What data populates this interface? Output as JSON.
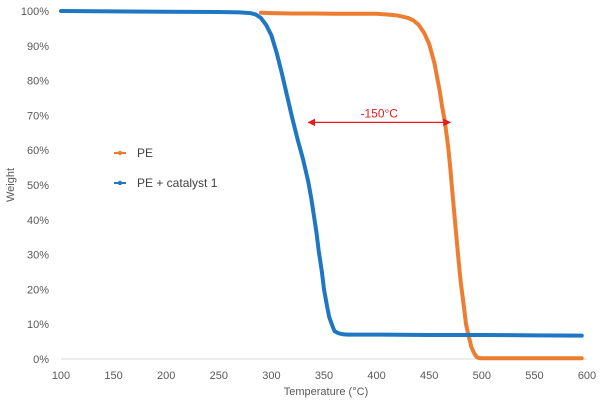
{
  "chart_data": {
    "type": "line",
    "title": "",
    "xlabel": "Temperature (°C)",
    "ylabel": "Weight",
    "xlim": [
      100,
      600
    ],
    "ylim": [
      0,
      100
    ],
    "x_ticks": [
      100,
      150,
      200,
      250,
      300,
      350,
      400,
      450,
      500,
      550,
      600
    ],
    "y_ticks": [
      "0%",
      "10%",
      "20%",
      "30%",
      "40%",
      "50%",
      "60%",
      "70%",
      "80%",
      "90%",
      "100%"
    ],
    "grid": false,
    "legend_position": "left-middle",
    "series": [
      {
        "name": "PE",
        "color": "#ED7D31",
        "x": [
          290,
          300,
          320,
          340,
          360,
          380,
          400,
          410,
          420,
          430,
          435,
          440,
          445,
          450,
          455,
          460,
          462,
          465,
          468,
          470,
          472,
          475,
          478,
          480,
          483,
          485,
          488,
          490,
          493,
          495,
          497,
          500,
          510,
          550,
          595
        ],
        "y": [
          99.5,
          99.4,
          99.3,
          99.3,
          99.2,
          99.2,
          99.2,
          99.0,
          98.7,
          98.0,
          97.3,
          96.0,
          93.8,
          90.5,
          85.0,
          77.0,
          73.0,
          68.0,
          61.0,
          55.0,
          48.0,
          38.0,
          28.0,
          22.0,
          15.0,
          10.0,
          6.0,
          3.5,
          1.5,
          0.6,
          0.3,
          0.2,
          0.2,
          0.2,
          0.2
        ]
      },
      {
        "name": "PE + catalyst 1",
        "color": "#1F77C4",
        "x": [
          100,
          150,
          200,
          250,
          270,
          280,
          285,
          290,
          295,
          300,
          305,
          310,
          315,
          320,
          325,
          330,
          335,
          338,
          340,
          343,
          345,
          348,
          350,
          353,
          355,
          358,
          360,
          363,
          365,
          368,
          372,
          380,
          400,
          450,
          500,
          550,
          595
        ],
        "y": [
          100,
          99.9,
          99.8,
          99.7,
          99.6,
          99.4,
          99.0,
          98.0,
          96.0,
          93.0,
          88.0,
          82.0,
          75.5,
          69.0,
          63.0,
          57.5,
          51.0,
          46.0,
          42.0,
          36.0,
          31.0,
          25.0,
          20.0,
          15.0,
          12.0,
          9.5,
          8.0,
          7.5,
          7.3,
          7.1,
          7.0,
          7.0,
          7.0,
          6.9,
          6.9,
          6.8,
          6.7
        ]
      }
    ],
    "annotation": {
      "text": "-150°C",
      "color": "#E81C1C",
      "x_start": 335,
      "x_end": 470,
      "y": 68
    }
  }
}
